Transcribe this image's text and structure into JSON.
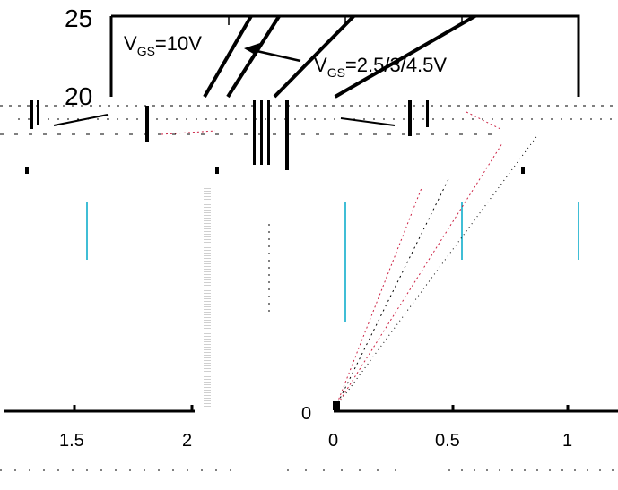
{
  "chart_data": {
    "type": "line",
    "title": "",
    "xlabel": "",
    "ylabel": "",
    "y_tick_labels": [
      "25",
      "20",
      "0"
    ],
    "x_tick_labels_left": [
      "1.5",
      "2"
    ],
    "x_tick_labels_right": [
      "0",
      "0.5",
      "1"
    ],
    "annotations": {
      "vgs_10_prefix": "V",
      "vgs_10_sub": "GS",
      "vgs_10_suffix": "=10V",
      "vgs_multi_prefix": "V",
      "vgs_multi_sub": "GS",
      "vgs_multi_suffix": "=2.5/3/4.5V"
    },
    "series": [
      {
        "values": [
          [
            1.2,
            20
          ],
          [
            1.3,
            25
          ]
        ]
      },
      {
        "values": [
          [
            1.25,
            20
          ],
          [
            1.36,
            25
          ]
        ]
      },
      {
        "values": [
          [
            1.35,
            20
          ],
          [
            1.52,
            25
          ]
        ]
      },
      {
        "values": [
          [
            1.48,
            20
          ],
          [
            1.78,
            25
          ]
        ]
      }
    ],
    "ylim": [
      0,
      25
    ],
    "grid": false
  },
  "colors": {
    "axis": "#000000",
    "grid_cyan": "#00a8c8",
    "artifact_red": "#cc2244"
  }
}
